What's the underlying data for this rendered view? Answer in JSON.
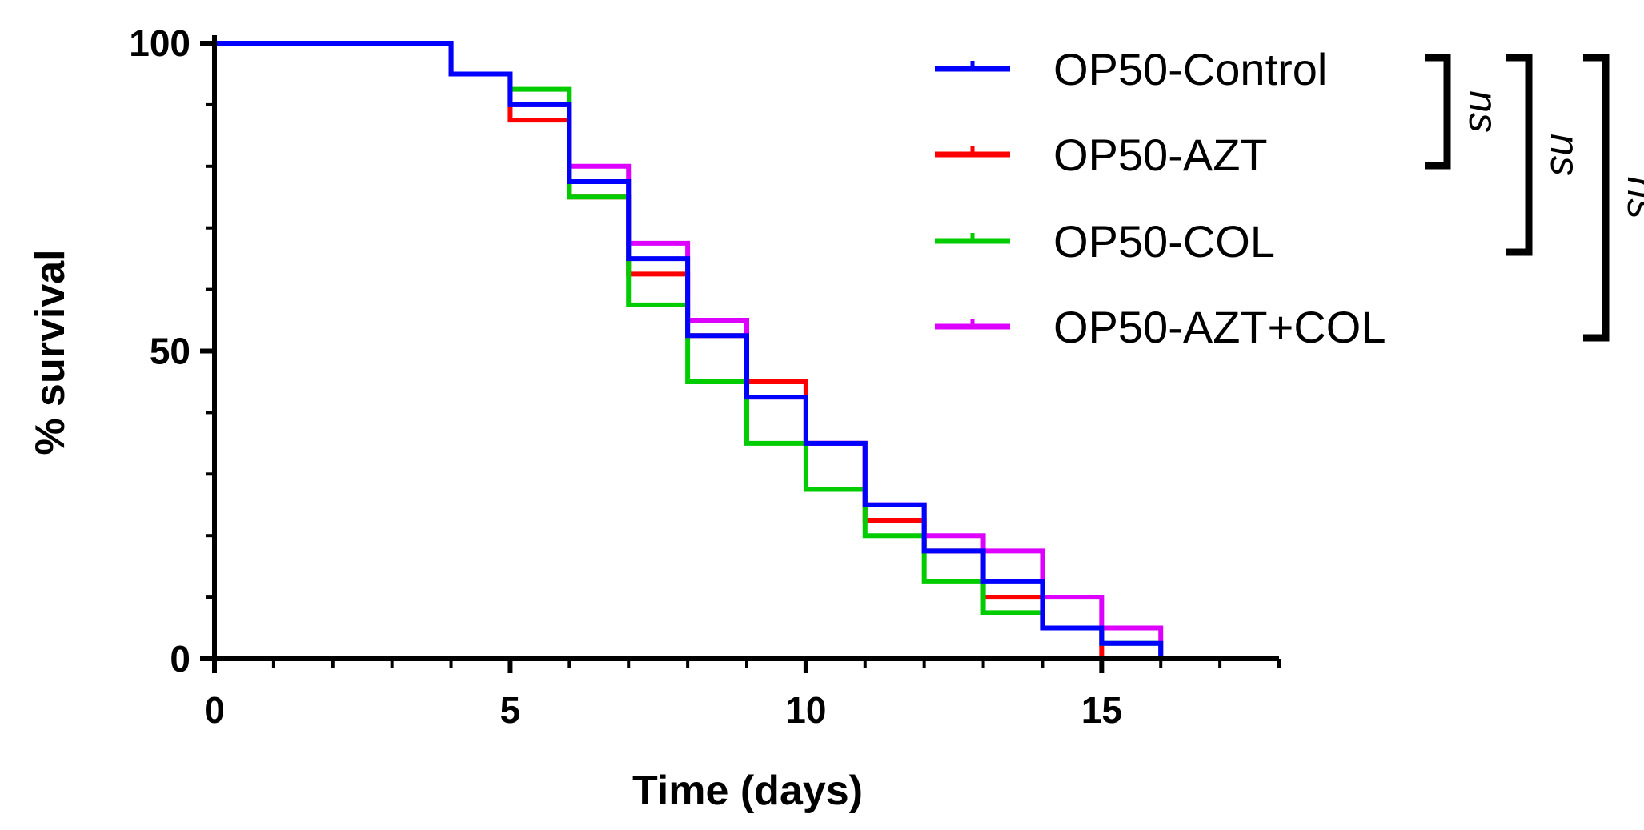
{
  "chart_data": {
    "type": "line",
    "step": true,
    "title": "",
    "xlabel": "Time (days)",
    "ylabel": "% survival",
    "xlim": [
      0,
      18
    ],
    "ylim": [
      0,
      100
    ],
    "x_ticks": [
      0,
      5,
      10,
      15
    ],
    "x_tick_labels": [
      "0",
      "5",
      "10",
      "15"
    ],
    "y_ticks": [
      0,
      50,
      100
    ],
    "y_tick_labels": [
      "0",
      "50",
      "100"
    ],
    "grid": false,
    "legend_position": "top-right",
    "series": [
      {
        "name": "OP50-AZT",
        "color": "#ff0000",
        "points": [
          [
            0,
            100
          ],
          [
            4,
            95
          ],
          [
            5,
            87.5
          ],
          [
            6,
            75
          ],
          [
            7,
            62.5
          ],
          [
            8,
            52.5
          ],
          [
            9,
            45
          ],
          [
            10,
            35
          ],
          [
            11,
            22.5
          ],
          [
            12,
            17.5
          ],
          [
            13,
            10
          ],
          [
            14,
            5
          ],
          [
            15,
            0
          ]
        ]
      },
      {
        "name": "OP50-COL",
        "color": "#00cc00",
        "points": [
          [
            0,
            100
          ],
          [
            4,
            95
          ],
          [
            5,
            92.5
          ],
          [
            6,
            75
          ],
          [
            7,
            57.5
          ],
          [
            8,
            45
          ],
          [
            9,
            35
          ],
          [
            10,
            27.5
          ],
          [
            11,
            20
          ],
          [
            12,
            12.5
          ],
          [
            13,
            7.5
          ],
          [
            14,
            5
          ],
          [
            15,
            2.5
          ],
          [
            16,
            0
          ]
        ]
      },
      {
        "name": "OP50-AZT+COL",
        "color": "#dd00ff",
        "points": [
          [
            0,
            100
          ],
          [
            4,
            95
          ],
          [
            5,
            90
          ],
          [
            6,
            80
          ],
          [
            7,
            67.5
          ],
          [
            8,
            55
          ],
          [
            9,
            42.5
          ],
          [
            10,
            35
          ],
          [
            11,
            25
          ],
          [
            12,
            20
          ],
          [
            13,
            17.5
          ],
          [
            14,
            10
          ],
          [
            15,
            5
          ],
          [
            16,
            0
          ]
        ]
      },
      {
        "name": "OP50-Control",
        "color": "#0000ff",
        "points": [
          [
            0,
            100
          ],
          [
            4,
            95
          ],
          [
            5,
            90
          ],
          [
            6,
            77.5
          ],
          [
            7,
            65
          ],
          [
            8,
            52.5
          ],
          [
            9,
            42.5
          ],
          [
            10,
            35
          ],
          [
            11,
            25
          ],
          [
            12,
            17.5
          ],
          [
            13,
            12.5
          ],
          [
            14,
            5
          ],
          [
            15,
            2.5
          ],
          [
            16,
            0
          ]
        ]
      }
    ],
    "legend_order": [
      "OP50-Control",
      "OP50-AZT",
      "OP50-COL",
      "OP50-AZT+COL"
    ],
    "annotations": [
      {
        "text": "ns",
        "from": "OP50-Control",
        "to": "OP50-AZT"
      },
      {
        "text": "ns",
        "from": "OP50-Control",
        "to": "OP50-COL"
      },
      {
        "text": "ns",
        "from": "OP50-Control",
        "to": "OP50-AZT+COL"
      }
    ]
  }
}
